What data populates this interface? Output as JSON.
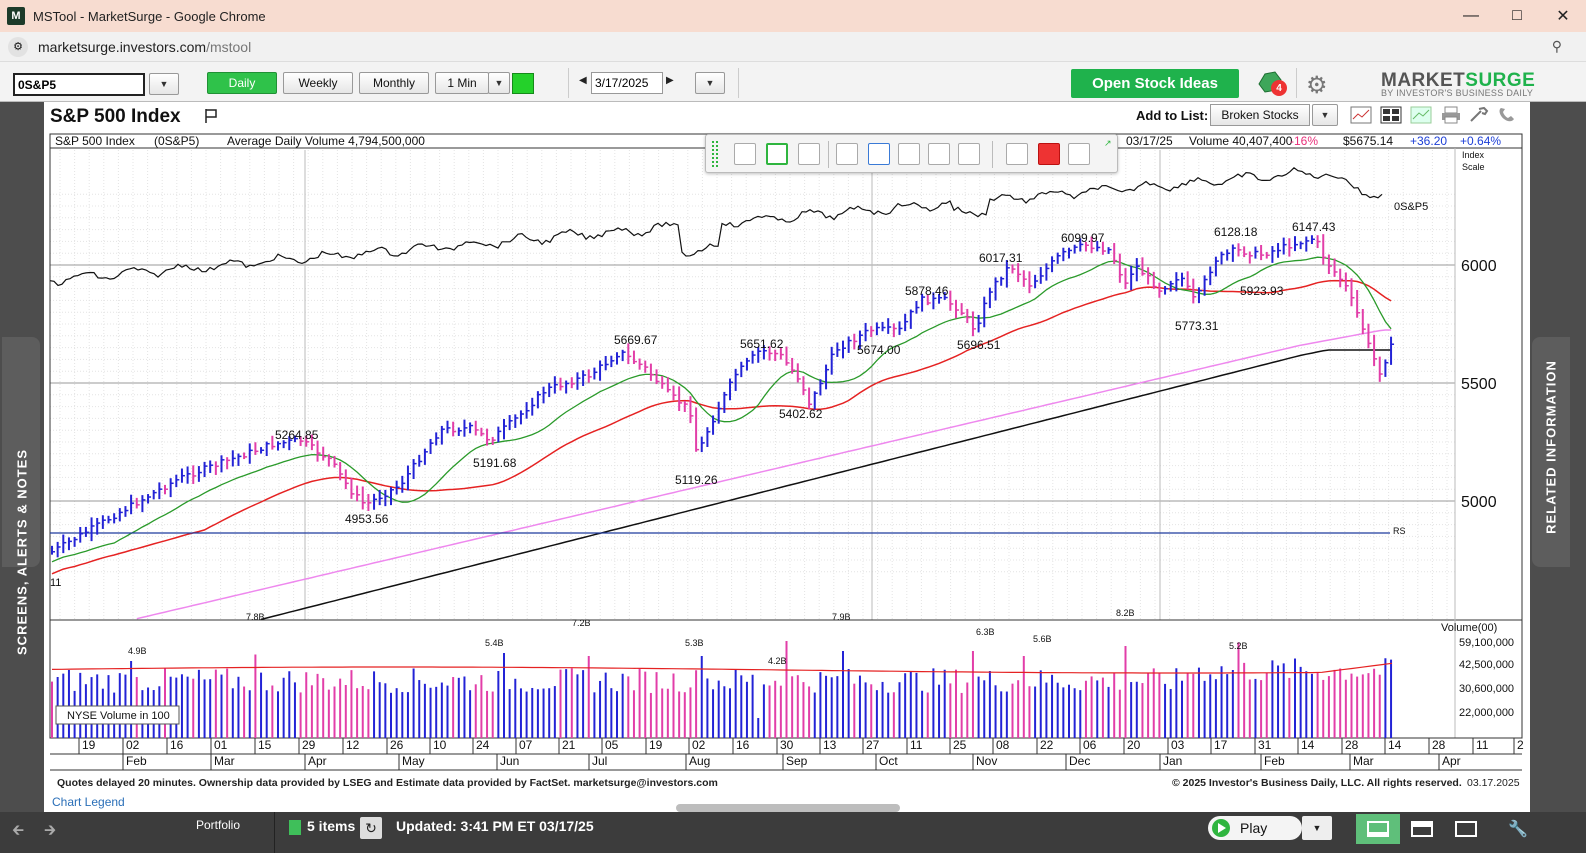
{
  "window": {
    "title": "MSTool - MarketSurge - Google Chrome",
    "app_icon": "M",
    "controls": [
      "minimize-icon",
      "maximize-icon",
      "close-icon"
    ]
  },
  "browser": {
    "url_host": "marketsurge.investors.com",
    "url_path": "/mstool",
    "zoom_icon": "zoom-icon"
  },
  "toolbar": {
    "symbol": "0S&P5",
    "periods": [
      "Daily",
      "Weekly",
      "Monthly",
      "1 Min"
    ],
    "active_period": "Daily",
    "date": "3/17/2025",
    "open_stock_ideas": "Open Stock Ideas",
    "alert_count": "4",
    "logo_market": "MARKET",
    "logo_surge": "SURGE",
    "logo_tag": "BY INVESTOR'S BUSINESS DAILY",
    "accent_green": "#1fb24c"
  },
  "header": {
    "title": "S&P 500 Index",
    "add_to_list_label": "Add to List:",
    "add_to_list_value": "Broken Stocks"
  },
  "info": {
    "name": "S&P 500 Index",
    "symbol": "(0S&P5)",
    "avg_volume": "Average Daily Volume 4,794,500,000",
    "date": "03/17/25",
    "volume": "Volume 40,407,400",
    "volume_pct": "-16%",
    "price": "$5675.14",
    "change": "+36.20",
    "change_pct": "+0.64%",
    "index_scale": [
      "Index",
      "Scale"
    ]
  },
  "side_tabs": {
    "left": "SCREENS, ALERTS & NOTES",
    "right": "RELATED INFORMATION"
  },
  "footer": {
    "note": "Quotes delayed 20 minutes. Ownership data provided by LSEG and Estimate data provided by FactSet. marketsurge@investors.com",
    "copyright": "© 2025 Investor's Business Daily, LLC. All rights reserved.",
    "date": "03.17.2025",
    "legend_link": "Chart Legend"
  },
  "statusbar": {
    "portfolio": "Portfolio",
    "items": "5 items",
    "updated": "Updated: 3:41 PM ET 03/17/25",
    "play": "Play"
  },
  "chart_data": {
    "type": "candlestick",
    "price_axis": {
      "ticks": [
        5000,
        5500,
        6000
      ],
      "labels": [
        "5000",
        "5500",
        "6000"
      ]
    },
    "rs_line_label": "0S&P5",
    "rs_marker": "RS",
    "price_annotations": [
      {
        "label": "5264.85",
        "kind": "high"
      },
      {
        "label": "4953.56",
        "kind": "low"
      },
      {
        "label": "5191.68",
        "kind": "low"
      },
      {
        "label": "5669.67",
        "kind": "high"
      },
      {
        "label": "5119.26",
        "kind": "low"
      },
      {
        "label": "5651.62",
        "kind": "high"
      },
      {
        "label": "5402.62",
        "kind": "low"
      },
      {
        "label": "5674.00",
        "kind": "low"
      },
      {
        "label": "5878.46",
        "kind": "high"
      },
      {
        "label": "5696.51",
        "kind": "low"
      },
      {
        "label": "6017.31",
        "kind": "high"
      },
      {
        "label": "6099.97",
        "kind": "high"
      },
      {
        "label": "5773.31",
        "kind": "low"
      },
      {
        "label": "6128.18",
        "kind": "high"
      },
      {
        "label": "5923.93",
        "kind": "low"
      },
      {
        "label": "6147.43",
        "kind": "high"
      }
    ],
    "volume_axis": {
      "title": "Volume(00)",
      "ticks": [
        "59,100,000",
        "42,500,000",
        "30,600,000",
        "22,000,000"
      ]
    },
    "volume_annotations": [
      "4.9B",
      "7.8B",
      "5.4B",
      "7.2B",
      "5.3B",
      "4.2B",
      "7.9B",
      "6.3B",
      "5.6B",
      "8.2B",
      "5.2B"
    ],
    "volume_legend": "NYSE Volume in 100",
    "x_days": [
      "19",
      "02",
      "16",
      "01",
      "15",
      "29",
      "12",
      "26",
      "10",
      "24",
      "07",
      "21",
      "05",
      "19",
      "02",
      "16",
      "30",
      "13",
      "27",
      "11",
      "25",
      "08",
      "22",
      "06",
      "20",
      "03",
      "17",
      "31",
      "14",
      "28",
      "14",
      "28",
      "11",
      "2"
    ],
    "x_months": [
      "Feb",
      "Mar",
      "Apr",
      "May",
      "Jun",
      "Jul",
      "Aug",
      "Sep",
      "Oct",
      "Nov",
      "Dec",
      "Jan",
      "Feb",
      "Mar",
      "Apr"
    ],
    "series": [
      {
        "name": "21-day MA",
        "color": "#2a9a2a"
      },
      {
        "name": "50-day MA",
        "color": "#e52222"
      },
      {
        "name": "150-day MA",
        "color": "#ee88ee"
      },
      {
        "name": "200-day MA",
        "color": "#111111"
      }
    ],
    "colors": {
      "up_bar": "#2323d6",
      "down_bar": "#e23ea8",
      "rs_line": "#111111",
      "rs_marker_line": "#1f3b9e"
    }
  }
}
